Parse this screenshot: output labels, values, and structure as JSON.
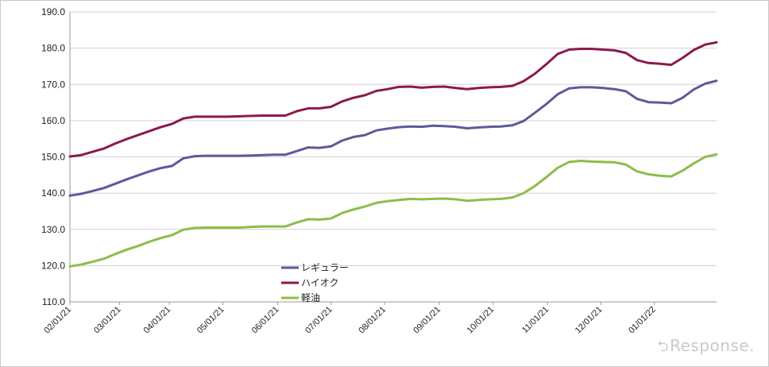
{
  "chart_data": {
    "type": "line",
    "title": "",
    "xlabel": "",
    "ylabel": "",
    "ylim": [
      110,
      190
    ],
    "yticks": [
      "110.0",
      "120.0",
      "130.0",
      "140.0",
      "150.0",
      "160.0",
      "170.0",
      "180.0",
      "190.0"
    ],
    "xticks": [
      {
        "label": "02/01/21",
        "week": 0
      },
      {
        "label": "03/01/21",
        "week": 4
      },
      {
        "label": "04/01/21",
        "week": 8
      },
      {
        "label": "05/01/21",
        "week": 12.3
      },
      {
        "label": "06/01/21",
        "week": 16.7
      },
      {
        "label": "07/01/21",
        "week": 21
      },
      {
        "label": "08/01/21",
        "week": 25.3
      },
      {
        "label": "09/01/21",
        "week": 29.7
      },
      {
        "label": "10/01/21",
        "week": 34
      },
      {
        "label": "11/01/21",
        "week": 38.4
      },
      {
        "label": "12/01/21",
        "week": 42.7
      },
      {
        "label": "01/01/22",
        "week": 47
      }
    ],
    "x_max_week": 52,
    "grid": "horizontal",
    "legend_position": "bottom-center",
    "series": [
      {
        "name": "レギュラー",
        "color": "#5a5b9a",
        "values": [
          139.3,
          139.8,
          140.6,
          141.4,
          142.6,
          143.8,
          144.9,
          146.0,
          146.9,
          147.5,
          149.6,
          150.2,
          150.3,
          150.3,
          150.3,
          150.3,
          150.4,
          150.5,
          150.6,
          150.6,
          151.6,
          152.6,
          152.5,
          152.9,
          154.5,
          155.5,
          156.0,
          157.3,
          157.8,
          158.2,
          158.4,
          158.3,
          158.6,
          158.5,
          158.3,
          157.9,
          158.1,
          158.3,
          158.4,
          158.7,
          159.9,
          162.2,
          164.6,
          167.3,
          168.9,
          169.2,
          169.2,
          169.0,
          168.7,
          168.1,
          166.0,
          165.1,
          165.0,
          164.8,
          166.3,
          168.6,
          170.2,
          171.0
        ]
      },
      {
        "name": "ハイオク",
        "color": "#8b1a4e",
        "values": [
          150.1,
          150.5,
          151.4,
          152.3,
          153.7,
          154.9,
          156.0,
          157.1,
          158.2,
          159.1,
          160.6,
          161.1,
          161.1,
          161.1,
          161.1,
          161.2,
          161.3,
          161.4,
          161.4,
          161.4,
          162.6,
          163.4,
          163.4,
          163.8,
          165.3,
          166.3,
          167.0,
          168.2,
          168.7,
          169.3,
          169.4,
          169.1,
          169.3,
          169.4,
          169.0,
          168.7,
          169.0,
          169.2,
          169.3,
          169.6,
          170.9,
          173.0,
          175.6,
          178.4,
          179.6,
          179.8,
          179.8,
          179.6,
          179.4,
          178.7,
          176.7,
          175.9,
          175.7,
          175.4,
          177.3,
          179.5,
          181.0,
          181.6
        ]
      },
      {
        "name": "軽油",
        "color": "#8cbd4a",
        "values": [
          119.8,
          120.3,
          121.1,
          121.9,
          123.2,
          124.4,
          125.4,
          126.6,
          127.6,
          128.4,
          129.9,
          130.4,
          130.5,
          130.5,
          130.5,
          130.5,
          130.7,
          130.8,
          130.8,
          130.8,
          131.9,
          132.8,
          132.7,
          133.0,
          134.5,
          135.5,
          136.3,
          137.3,
          137.8,
          138.1,
          138.4,
          138.3,
          138.4,
          138.5,
          138.3,
          137.9,
          138.1,
          138.3,
          138.4,
          138.8,
          140.0,
          142.0,
          144.4,
          147.0,
          148.6,
          148.9,
          148.7,
          148.6,
          148.5,
          147.9,
          146.0,
          145.2,
          144.8,
          144.6,
          146.2,
          148.2,
          150.0,
          150.7
        ]
      }
    ]
  },
  "watermark": {
    "text": "Response."
  }
}
